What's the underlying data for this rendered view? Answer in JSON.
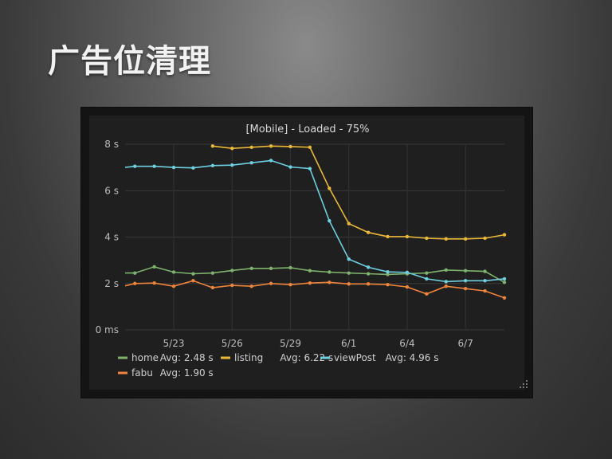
{
  "slide": {
    "title": "广告位清理"
  },
  "chart_data": {
    "type": "line",
    "title": "[Mobile] - Loaded - 75%",
    "xlabel": "",
    "ylabel": "",
    "ylim": [
      0,
      8
    ],
    "yticks": [
      {
        "value": 0,
        "label": "0 ms"
      },
      {
        "value": 2,
        "label": "2 s"
      },
      {
        "value": 4,
        "label": "4 s"
      },
      {
        "value": 6,
        "label": "6 s"
      },
      {
        "value": 8,
        "label": "8 s"
      }
    ],
    "xlim": [
      0,
      19.5
    ],
    "xticks": [
      {
        "value": 2.5,
        "label": "5/23"
      },
      {
        "value": 5.5,
        "label": "5/26"
      },
      {
        "value": 8.5,
        "label": "5/29"
      },
      {
        "value": 11.5,
        "label": "6/1"
      },
      {
        "value": 14.5,
        "label": "6/4"
      },
      {
        "value": 17.5,
        "label": "6/7"
      }
    ],
    "grid": true,
    "legend_position": "bottom",
    "series": [
      {
        "name": "home",
        "avg_label": "Avg: 2.48 s",
        "color": "#7eb26d",
        "x": [
          0,
          0.5,
          1.5,
          2.5,
          3.5,
          4.5,
          5.5,
          6.5,
          7.5,
          8.5,
          9.5,
          10.5,
          11.5,
          12.5,
          13.5,
          14.5,
          15.5,
          16.5,
          17.5,
          18.5,
          19.5
        ],
        "values": [
          2.45,
          2.45,
          2.72,
          2.49,
          2.42,
          2.45,
          2.56,
          2.65,
          2.65,
          2.68,
          2.55,
          2.49,
          2.45,
          2.42,
          2.39,
          2.42,
          2.45,
          2.58,
          2.55,
          2.52,
          2.05
        ]
      },
      {
        "name": "listing",
        "avg_label": "Avg: 6.22 s",
        "color": "#eab839",
        "x": [
          4.5,
          5.5,
          6.5,
          7.5,
          8.5,
          9.5,
          10.5,
          11.5,
          12.5,
          13.5,
          14.5,
          15.5,
          16.5,
          17.5,
          18.5,
          19.5
        ],
        "values": [
          7.92,
          7.82,
          7.87,
          7.92,
          7.9,
          7.87,
          6.1,
          4.58,
          4.2,
          4.02,
          4.02,
          3.95,
          3.92,
          3.92,
          3.95,
          4.1
        ]
      },
      {
        "name": "viewPost",
        "avg_label": "Avg: 4.96 s",
        "color": "#6ed0e0",
        "x": [
          0,
          0.5,
          1.5,
          2.5,
          3.5,
          4.5,
          5.5,
          6.5,
          7.5,
          8.5,
          9.5,
          10.5,
          11.5,
          12.5,
          13.5,
          14.5,
          15.5,
          16.5,
          17.5,
          18.5,
          19.5
        ],
        "values": [
          7.0,
          7.05,
          7.05,
          7.0,
          6.98,
          7.08,
          7.1,
          7.2,
          7.3,
          7.02,
          6.95,
          4.7,
          3.05,
          2.7,
          2.5,
          2.48,
          2.2,
          2.08,
          2.12,
          2.12,
          2.2
        ]
      },
      {
        "name": "fabu",
        "avg_label": "Avg: 1.90 s",
        "color": "#ef843c",
        "x": [
          0,
          0.5,
          1.5,
          2.5,
          3.5,
          4.5,
          5.5,
          6.5,
          7.5,
          8.5,
          9.5,
          10.5,
          11.5,
          12.5,
          13.5,
          14.5,
          15.5,
          16.5,
          17.5,
          18.5,
          19.5
        ],
        "values": [
          1.9,
          2.0,
          2.02,
          1.88,
          2.12,
          1.82,
          1.92,
          1.88,
          2.0,
          1.95,
          2.02,
          2.05,
          1.98,
          1.98,
          1.95,
          1.85,
          1.55,
          1.88,
          1.78,
          1.68,
          1.38
        ]
      }
    ]
  }
}
